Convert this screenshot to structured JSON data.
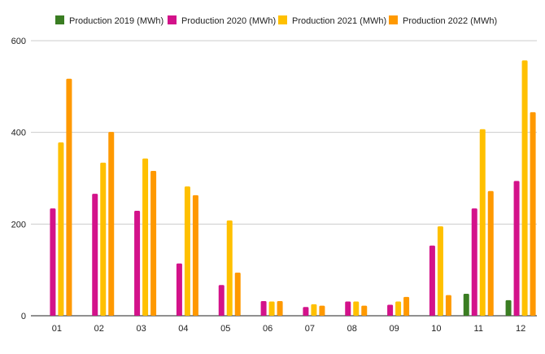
{
  "chart_data": {
    "type": "bar",
    "categories": [
      "01",
      "02",
      "03",
      "04",
      "05",
      "06",
      "07",
      "08",
      "09",
      "10",
      "11",
      "12"
    ],
    "series": [
      {
        "name": "Production 2019 (MWh)",
        "color": "#3a7d22",
        "values": [
          0,
          0,
          0,
          0,
          0,
          0,
          0,
          0,
          0,
          0,
          48,
          34
        ]
      },
      {
        "name": "Production 2020 (MWh)",
        "color": "#d3128a",
        "values": [
          234,
          266,
          229,
          114,
          67,
          32,
          19,
          31,
          24,
          153,
          234,
          294
        ]
      },
      {
        "name": "Production 2021 (MWh)",
        "color": "#ffc000",
        "values": [
          378,
          334,
          343,
          282,
          208,
          31,
          25,
          31,
          31,
          195,
          407,
          557
        ]
      },
      {
        "name": "Production 2022 (MWh)",
        "color": "#ff9900",
        "values": [
          517,
          401,
          316,
          263,
          94,
          32,
          22,
          22,
          41,
          45,
          272,
          444
        ]
      }
    ],
    "ylim": [
      0,
      600
    ],
    "yticks": [
      0,
      200,
      400,
      600
    ],
    "grid": true,
    "legend": "top"
  }
}
